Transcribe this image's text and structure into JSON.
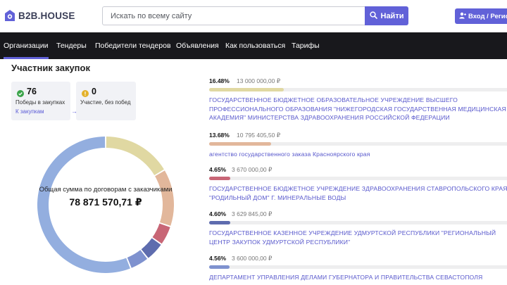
{
  "header": {
    "logo_text": "B2B.HOUSE",
    "search_placeholder": "Искать по всему сайту",
    "search_button": "Найти",
    "login_button": "Вход / Регистрация",
    "accent": "#6161d8"
  },
  "nav": {
    "items": [
      {
        "label": "Организации",
        "active": true
      },
      {
        "label": "Тендеры"
      },
      {
        "label": "Победители тендеров"
      },
      {
        "label": "Объявления"
      },
      {
        "label": "Как пользоваться"
      },
      {
        "label": "Тарифы"
      }
    ]
  },
  "section": {
    "title": "Участник закупок"
  },
  "cards": {
    "wins": {
      "count": "76",
      "label": "Победы в закупках",
      "link": "К закупкам",
      "icon": "check-circle-icon",
      "color": "#3aa44a"
    },
    "no_wins": {
      "count": "0",
      "label": "Участие, без побед",
      "icon": "alert-circle-icon",
      "color": "#e3b12a"
    }
  },
  "donut": {
    "label": "Общая сумма по договорам с заказчиками",
    "total": "78 871 570,71 ₽",
    "segments": [
      {
        "percent": 16.48,
        "color": "#e0d8a2"
      },
      {
        "percent": 13.68,
        "color": "#e2b79b"
      },
      {
        "percent": 4.65,
        "color": "#c86676"
      },
      {
        "percent": 4.6,
        "color": "#5e6cae"
      },
      {
        "percent": 4.56,
        "color": "#7f92cf"
      },
      {
        "percent": 56.03,
        "color": "#93aedf"
      }
    ]
  },
  "customers": [
    {
      "percent": "16.48%",
      "amount": "13 000 000,00 ₽",
      "name": "ГОСУДАРСТВЕННОЕ БЮДЖЕТНОЕ ОБРАЗОВАТЕЛЬНОЕ УЧРЕЖДЕНИЕ ВЫСШЕГО ПРОФЕССИОНАЛЬНОГО ОБРАЗОВАНИЯ \"НИЖЕГОРОДСКАЯ ГОСУДАРСТВЕННАЯ МЕДИЦИНСКАЯ АКАДЕМИЯ\" МИНИСТЕРСТВА ЗДРАВООХРАНЕНИЯ РОССИЙСКОЙ ФЕДЕРАЦИИ",
      "bar_color": "#e0d8a2",
      "share": 0.1648
    },
    {
      "percent": "13.68%",
      "amount": "10 795 405,50 ₽",
      "name": "агентство государственного заказа Красноярского края",
      "bar_color": "#e2b79b",
      "share": 0.1368
    },
    {
      "percent": "4.65%",
      "amount": "3 670 000,00 ₽",
      "name": "ГОСУДАРСТВЕННОЕ БЮДЖЕТНОЕ УЧРЕЖДЕНИЕ ЗДРАВООХРАНЕНИЯ СТАВРОПОЛЬСКОГО КРАЯ \"РОДИЛЬНЫЙ ДОМ\" Г. МИНЕРАЛЬНЫЕ ВОДЫ",
      "bar_color": "#c86676",
      "share": 0.0465
    },
    {
      "percent": "4.60%",
      "amount": "3 629 845,00 ₽",
      "name": "ГОСУДАРСТВЕННОЕ КАЗЕННОЕ УЧРЕЖДЕНИЕ УДМУРТСКОЙ РЕСПУБЛИКИ \"РЕГИОНАЛЬНЫЙ ЦЕНТР ЗАКУПОК УДМУРТСКОЙ РЕСПУБЛИКИ\"",
      "bar_color": "#5e6cae",
      "share": 0.046
    },
    {
      "percent": "4.56%",
      "amount": "3 600 000,00 ₽",
      "name": "ДЕПАРТАМЕНТ УПРАВЛЕНИЯ ДЕЛАМИ ГУБЕРНАТОРА И ПРАВИТЕЛЬСТВА СЕВАСТОПОЛЯ",
      "bar_color": "#7f92cf",
      "share": 0.0456
    }
  ]
}
